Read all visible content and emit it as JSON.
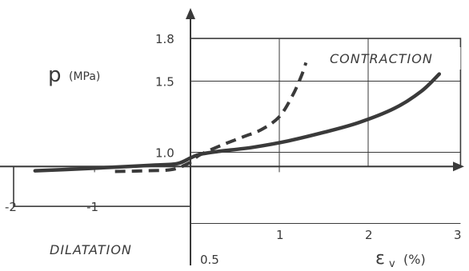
{
  "chart_data": {
    "type": "line",
    "title": "",
    "xlabel": "ε",
    "xlabel_subscript": "v",
    "xlabel_unit": "(%)",
    "ylabel": "p",
    "ylabel_unit": "(MPa)",
    "x_ticks": [
      "-2",
      "-1",
      "1",
      "2",
      "3"
    ],
    "y_ticks": [
      "1.8",
      "1.5",
      "1.0",
      "0.5"
    ],
    "xlim": [
      -2,
      3
    ],
    "ylim": [
      0.5,
      1.8
    ],
    "grid": true,
    "region_labels": {
      "upper": "CONTRACTION",
      "lower": "DILATATION"
    },
    "series": [
      {
        "style": "solid",
        "x": [
          -1.75,
          -1.2,
          -0.7,
          -0.4,
          -0.15,
          0,
          0.1,
          0.3,
          0.7,
          1.1,
          1.5,
          1.9,
          2.3,
          2.6,
          2.8
        ],
        "y": [
          0.87,
          0.885,
          0.9,
          0.91,
          0.92,
          0.96,
          0.985,
          1.005,
          1.035,
          1.08,
          1.14,
          1.21,
          1.31,
          1.43,
          1.55
        ]
      },
      {
        "style": "dashed",
        "x": [
          -0.85,
          -0.5,
          -0.2,
          0,
          0.1,
          0.35,
          0.6,
          0.8,
          1.0,
          1.15,
          1.25,
          1.3
        ],
        "y": [
          0.865,
          0.87,
          0.88,
          0.93,
          0.98,
          1.05,
          1.11,
          1.16,
          1.25,
          1.4,
          1.54,
          1.63
        ]
      }
    ]
  }
}
